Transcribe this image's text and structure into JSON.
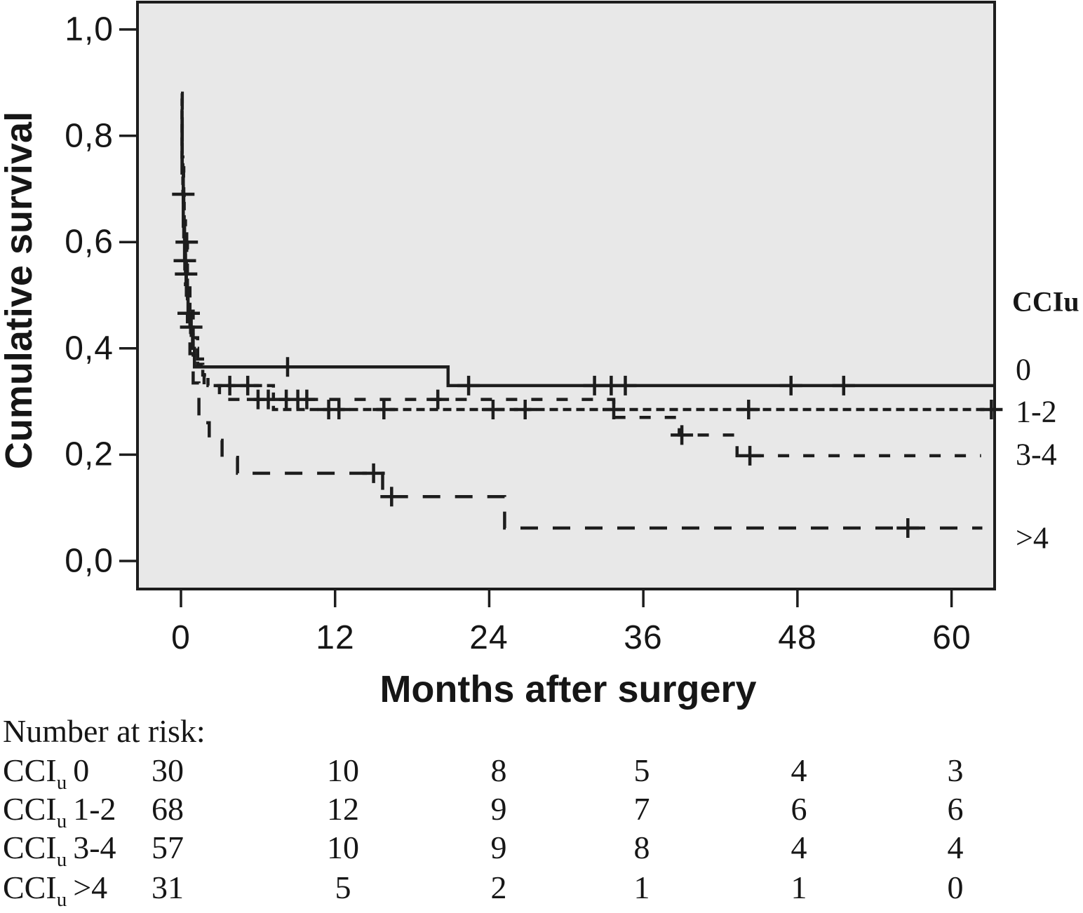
{
  "figure": {
    "y_axis": {
      "label": "Cumulative survival",
      "tick_labels": [
        "1,0",
        "0,8",
        "0,6",
        "0,4",
        "0,2",
        "0,0"
      ]
    },
    "x_axis": {
      "label": "Months after surgery",
      "tick_labels": [
        "0",
        "12",
        "24",
        "36",
        "48",
        "60"
      ]
    },
    "legend": {
      "title": "CCIu",
      "items": [
        "0",
        "1-2",
        "3-4",
        ">4"
      ]
    }
  },
  "chart_data": {
    "type": "line",
    "subtype": "kaplan-meier-step",
    "title": "",
    "xlabel": "Months after surgery",
    "ylabel": "Cumulative survival",
    "xlim": [
      0,
      63.4
    ],
    "ylim": [
      -0.05,
      1.05
    ],
    "x_ticks": [
      0,
      12,
      24,
      36,
      48,
      60
    ],
    "y_ticks": [
      1.0,
      0.8,
      0.6,
      0.4,
      0.2,
      0.0
    ],
    "grid": false,
    "legend_position": "right-outside",
    "series": [
      {
        "name": "0",
        "legend_label": "0",
        "line_style": "solid",
        "steps": [
          [
            0,
            0.85
          ],
          [
            0.08,
            0.73
          ],
          [
            0.18,
            0.63
          ],
          [
            0.28,
            0.565
          ],
          [
            0.42,
            0.5
          ],
          [
            0.55,
            0.466
          ],
          [
            0.75,
            0.43
          ],
          [
            0.9,
            0.4
          ],
          [
            1.05,
            0.365
          ],
          [
            20.8,
            0.33
          ]
        ],
        "end_month": 63.3,
        "censors": [
          [
            0.3,
            0.565
          ],
          [
            0.6,
            0.466
          ],
          [
            8.3,
            0.365
          ],
          [
            22.4,
            0.33
          ],
          [
            32.2,
            0.33
          ],
          [
            33.5,
            0.33
          ],
          [
            34.6,
            0.33
          ],
          [
            47.5,
            0.33
          ],
          [
            51.6,
            0.33
          ]
        ]
      },
      {
        "name": "1-2",
        "legend_label": "1-2",
        "line_style": "short-dash",
        "steps": [
          [
            0,
            0.87
          ],
          [
            0.08,
            0.76
          ],
          [
            0.15,
            0.69
          ],
          [
            0.25,
            0.6
          ],
          [
            0.35,
            0.54
          ],
          [
            0.5,
            0.49
          ],
          [
            0.7,
            0.44
          ],
          [
            0.95,
            0.4
          ],
          [
            1.3,
            0.37
          ],
          [
            1.7,
            0.35
          ],
          [
            2.1,
            0.33
          ],
          [
            7.2,
            0.285
          ]
        ],
        "end_month": 63.35,
        "censors": [
          [
            0.18,
            0.69
          ],
          [
            0.4,
            0.54
          ],
          [
            0.8,
            0.44
          ],
          [
            3.8,
            0.33
          ],
          [
            5.2,
            0.33
          ],
          [
            11.5,
            0.285
          ],
          [
            12.3,
            0.285
          ],
          [
            15.8,
            0.285
          ],
          [
            24.3,
            0.285
          ],
          [
            26.8,
            0.285
          ],
          [
            33.7,
            0.285
          ],
          [
            44.2,
            0.285
          ],
          [
            63.1,
            0.285
          ]
        ]
      },
      {
        "name": "3-4",
        "legend_label": "3-4",
        "line_style": "medium-dash",
        "steps": [
          [
            0,
            0.88
          ],
          [
            0.1,
            0.75
          ],
          [
            0.2,
            0.64
          ],
          [
            0.35,
            0.6
          ],
          [
            0.5,
            0.53
          ],
          [
            0.7,
            0.47
          ],
          [
            0.95,
            0.42
          ],
          [
            1.3,
            0.38
          ],
          [
            1.8,
            0.33
          ],
          [
            3.0,
            0.304
          ],
          [
            33.7,
            0.27
          ],
          [
            38.8,
            0.237
          ],
          [
            43.3,
            0.198
          ]
        ],
        "end_month": 62.3,
        "censors": [
          [
            0.45,
            0.6
          ],
          [
            6.0,
            0.304
          ],
          [
            6.8,
            0.304
          ],
          [
            8.2,
            0.304
          ],
          [
            9.1,
            0.304
          ],
          [
            9.8,
            0.304
          ],
          [
            20.0,
            0.304
          ],
          [
            39.0,
            0.237
          ],
          [
            44.3,
            0.198
          ]
        ]
      },
      {
        "name": ">4",
        "legend_label": ">4",
        "line_style": "long-dash",
        "steps": [
          [
            0,
            0.88
          ],
          [
            0.1,
            0.74
          ],
          [
            0.22,
            0.61
          ],
          [
            0.35,
            0.52
          ],
          [
            0.5,
            0.45
          ],
          [
            0.7,
            0.39
          ],
          [
            0.95,
            0.335
          ],
          [
            1.4,
            0.26
          ],
          [
            2.2,
            0.227
          ],
          [
            3.2,
            0.195
          ],
          [
            4.4,
            0.165
          ],
          [
            15.7,
            0.121
          ],
          [
            25.2,
            0.062
          ]
        ],
        "end_month": 62.4,
        "censors": [
          [
            15.0,
            0.165
          ],
          [
            16.4,
            0.121
          ],
          [
            56.6,
            0.062
          ]
        ]
      }
    ]
  },
  "risk_table": {
    "title": "Number at risk:",
    "group_prefix": "CCI",
    "group_sub": "u",
    "columns": [
      0,
      12,
      24,
      36,
      48,
      60
    ],
    "rows": [
      {
        "group": "0",
        "counts": [
          "30",
          "10",
          "8",
          "5",
          "4",
          "3"
        ]
      },
      {
        "group": "1-2",
        "counts": [
          "68",
          "12",
          "9",
          "7",
          "6",
          "6"
        ]
      },
      {
        "group": "3-4",
        "counts": [
          "57",
          "10",
          "9",
          "8",
          "4",
          "4"
        ]
      },
      {
        "group": ">4",
        "counts": [
          "31",
          "5",
          "2",
          "1",
          "1",
          "0"
        ]
      }
    ]
  },
  "colors": {
    "line": "#1d1d1d",
    "plot_background": "#e8e8e8",
    "page_background": "#ffffff",
    "text": "#161616"
  }
}
